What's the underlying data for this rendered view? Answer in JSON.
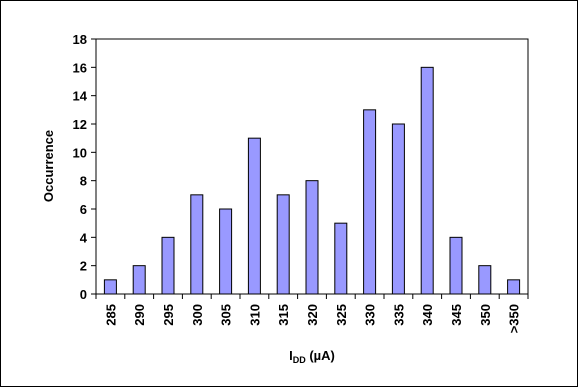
{
  "chart_data": {
    "type": "bar",
    "categories": [
      "285",
      "290",
      "295",
      "300",
      "305",
      "310",
      "315",
      "320",
      "325",
      "330",
      "335",
      "340",
      "345",
      "350",
      ">350"
    ],
    "values": [
      1,
      2,
      4,
      7,
      6,
      11,
      7,
      8,
      5,
      13,
      12,
      16,
      4,
      2,
      1
    ],
    "title": "",
    "xlabel": "I",
    "xlabel_subscript": "DD",
    "xlabel_unit": " (µA)",
    "ylabel": "Occurrence",
    "ylim": [
      0,
      18
    ],
    "yticks": [
      "0",
      "2",
      "4",
      "6",
      "8",
      "10",
      "12",
      "14",
      "16",
      "18"
    ],
    "grid": false,
    "legend": "none",
    "bar_fill": "#9999ff",
    "bar_stroke": "#000000"
  }
}
